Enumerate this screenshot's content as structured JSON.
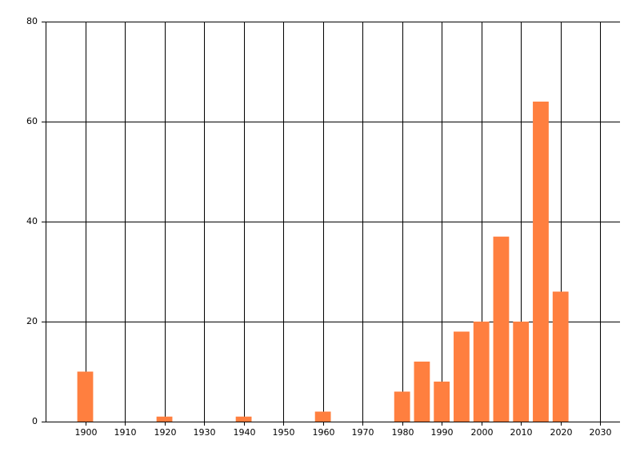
{
  "chart_data": {
    "type": "bar",
    "x": [
      1900,
      1920,
      1940,
      1960,
      1980,
      1985,
      1990,
      1995,
      2000,
      2005,
      2010,
      2015,
      2020
    ],
    "values": [
      10,
      1,
      1,
      2,
      6,
      12,
      8,
      18,
      20,
      37,
      20,
      64,
      26
    ],
    "color": "#ff7f3f",
    "xlim": [
      1890,
      2035
    ],
    "xticks": [
      1900,
      1910,
      1920,
      1930,
      1940,
      1950,
      1960,
      1970,
      1980,
      1990,
      2000,
      2010,
      2020,
      2030
    ],
    "ylim": [
      0,
      80
    ],
    "yticks": [
      0,
      20,
      40,
      60,
      80
    ],
    "grid": true
  }
}
